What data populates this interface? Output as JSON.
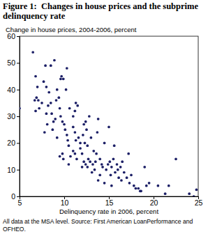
{
  "chart_data": {
    "type": "scatter",
    "title": "Figure 1:  Changes in house prices and the subprime delinquency rate",
    "ylabel": "Change in house prices, 2004-2006, percent",
    "xlabel": "Delinquency rate in 2006, percent",
    "annotations": [
      "All data at the MSA level. Source: First American LoanPerformance and OFHEO."
    ],
    "color": "#1c1f66",
    "marker": "circle",
    "grid": false,
    "xlim": [
      5,
      25
    ],
    "xticks": [
      5,
      10,
      15,
      20,
      25
    ],
    "ylim": [
      0,
      60
    ],
    "yticks": [
      0,
      10,
      20,
      30,
      40,
      50,
      60
    ],
    "x": [
      5.0,
      6.5,
      6.8,
      7.0,
      6.7,
      6.9,
      7.1,
      6.8,
      7.2,
      7.5,
      7.9,
      8.5,
      8.9,
      7.7,
      8.0,
      8.3,
      8.5,
      8.2,
      8.0,
      8.6,
      8.8,
      8.7,
      8.1,
      7.8,
      9.1,
      9.4,
      9.2,
      9.6,
      9.7,
      9.9,
      10.3,
      10.2,
      9.5,
      9.0,
      9.6,
      9.8,
      10.0,
      10.1,
      10.3,
      9.2,
      9.5,
      9.8,
      9.9,
      10.4,
      10.5,
      10.6,
      11.0,
      11.2,
      11.3,
      11.5,
      11.0,
      11.2,
      11.3,
      11.6,
      11.8,
      11.0,
      11.2,
      11.4,
      10.7,
      10.5,
      11.8,
      12.0,
      12.1,
      12.2,
      12.4,
      12.5,
      12.3,
      12.6,
      12.8,
      13.0,
      12.7,
      12.9,
      12.4,
      12.2,
      12.6,
      12.0,
      13.2,
      13.4,
      13.5,
      13.1,
      13.3,
      13.7,
      13.8,
      13.6,
      14.0,
      14.2,
      14.0,
      13.8,
      14.3,
      14.5,
      14.7,
      14.9,
      15.1,
      15.0,
      15.3,
      15.5,
      15.2,
      15.7,
      15.6,
      15.9,
      16.0,
      16.1,
      16.3,
      16.5,
      16.7,
      17.0,
      16.4,
      17.2,
      17.5,
      17.3,
      17.8,
      18.0,
      18.3,
      18.5,
      19.0,
      19.2,
      19.5,
      18.6,
      20.5,
      21.3,
      21.7,
      22.5,
      24.0,
      24.8,
      24.5,
      14.5,
      15.3
    ],
    "values": [
      33,
      54,
      45,
      41,
      36,
      37,
      36,
      32,
      33,
      35,
      49,
      49,
      51,
      43,
      41,
      39,
      35,
      34,
      31,
      31,
      28,
      25,
      27,
      24,
      36,
      37,
      40,
      44,
      45,
      44,
      48,
      40,
      33,
      29,
      30,
      28,
      27,
      25,
      23,
      22,
      15,
      16,
      14,
      21,
      19,
      33,
      30,
      32,
      35,
      34,
      26,
      24,
      21,
      22,
      20,
      17,
      16,
      14,
      15,
      12,
      18,
      16,
      23,
      27,
      28,
      25,
      20,
      19,
      30,
      22,
      14,
      13,
      12,
      13,
      11,
      11,
      12,
      10,
      13,
      9,
      17,
      24,
      29,
      16,
      14,
      12,
      8,
      6,
      11,
      20,
      10,
      12,
      13,
      26,
      11,
      14,
      8,
      9,
      19,
      12,
      10,
      7,
      11,
      13,
      9,
      7,
      6,
      16,
      8,
      5,
      4,
      3,
      3,
      2,
      11,
      4,
      5,
      2,
      4,
      1,
      4,
      14,
      1,
      2.5,
      0,
      5,
      4
    ]
  }
}
